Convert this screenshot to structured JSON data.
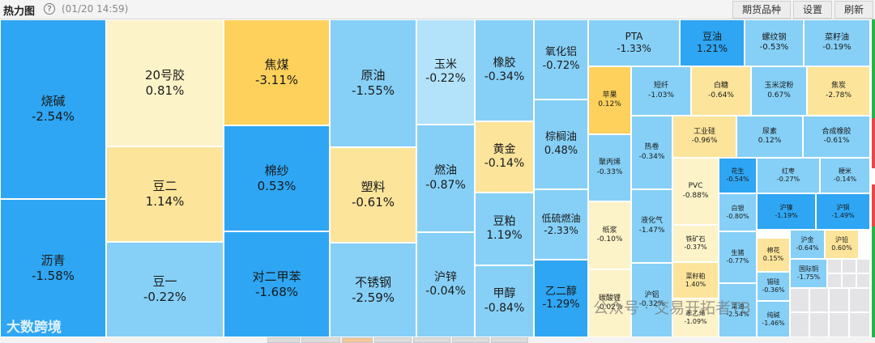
{
  "header": {
    "title": "热力图",
    "help_icon": "question-circle-icon",
    "help_glyph": "?",
    "timestamp": "(01/20 14:59)",
    "buttons": [
      {
        "name": "futures-varieties-button",
        "label": "期货品种"
      },
      {
        "name": "settings-button",
        "label": "设置"
      },
      {
        "name": "refresh-button",
        "label": "刷新"
      }
    ]
  },
  "colors": {
    "deep_blue": "#2ea6f3",
    "mid_blue": "#86d0f7",
    "light_blue": "#b3e3fb",
    "pale_yellow": "#fdf3c8",
    "light_yellow": "#fce49a",
    "orange_yellow": "#fdd15c",
    "empty_gray": "#e4e4e6"
  },
  "tiles": [
    {
      "name": "烧碱",
      "change": "-2.54%"
    },
    {
      "name": "沥青",
      "change": "-1.58%"
    },
    {
      "name": "20号胶",
      "change": "0.81%"
    },
    {
      "name": "豆二",
      "change": "1.14%"
    },
    {
      "name": "豆一",
      "change": "-0.22%"
    },
    {
      "name": "焦煤",
      "change": "-3.11%"
    },
    {
      "name": "棉纱",
      "change": "0.53%"
    },
    {
      "name": "对二甲苯",
      "change": "-1.68%"
    },
    {
      "name": "原油",
      "change": "-1.55%"
    },
    {
      "name": "塑料",
      "change": "-0.61%"
    },
    {
      "name": "不锈钢",
      "change": "-2.59%"
    },
    {
      "name": "玉米",
      "change": "-0.22%"
    },
    {
      "name": "燃油",
      "change": "-0.87%"
    },
    {
      "name": "沪锌",
      "change": "-0.04%"
    },
    {
      "name": "橡胶",
      "change": "-0.34%"
    },
    {
      "name": "黄金",
      "change": "-0.14%"
    },
    {
      "name": "豆粕",
      "change": "1.19%"
    },
    {
      "name": "甲醇",
      "change": "-0.84%"
    },
    {
      "name": "氧化铝",
      "change": "-0.72%"
    },
    {
      "name": "棕榈油",
      "change": "0.48%"
    },
    {
      "name": "低硫燃油",
      "change": "-2.33%"
    },
    {
      "name": "乙二醇",
      "change": "-1.29%"
    },
    {
      "name": "PTA",
      "change": "-1.33%"
    },
    {
      "name": "豆油",
      "change": "1.21%"
    },
    {
      "name": "螺纹钢",
      "change": "-0.53%"
    },
    {
      "name": "菜籽油",
      "change": "-0.19%"
    },
    {
      "name": "苹果",
      "change": "0.12%"
    },
    {
      "name": "短纤",
      "change": "-1.03%"
    },
    {
      "name": "白糖",
      "change": "-0.64%"
    },
    {
      "name": "玉米淀粉",
      "change": "0.67%"
    },
    {
      "name": "焦炭",
      "change": "-2.78%"
    },
    {
      "name": "聚丙烯",
      "change": "-0.33%"
    },
    {
      "name": "热卷",
      "change": "-0.34%"
    },
    {
      "name": "工业硅",
      "change": "-0.96%"
    },
    {
      "name": "尿素",
      "change": "0.12%"
    },
    {
      "name": "合成橡胶",
      "change": "-0.61%"
    },
    {
      "name": "PVC",
      "change": "-0.88%"
    },
    {
      "name": "花生",
      "change": "-0.54%"
    },
    {
      "name": "红枣",
      "change": "-0.27%"
    },
    {
      "name": "粳米",
      "change": "-0.14%"
    },
    {
      "name": "纸浆",
      "change": "-0.10%"
    },
    {
      "name": "液化气",
      "change": "-1.47%"
    },
    {
      "name": "白银",
      "change": "-0.80%"
    },
    {
      "name": "沪镍",
      "change": "-1.19%"
    },
    {
      "name": "沪铜",
      "change": "-1.49%"
    },
    {
      "name": "铁矿石",
      "change": "-0.37%"
    },
    {
      "name": "沪金",
      "change": "-0.64%"
    },
    {
      "name": "沪铅",
      "change": "0.60%"
    },
    {
      "name": "生猪",
      "change": "-0.77%"
    },
    {
      "name": "棉花",
      "change": "0.15%"
    },
    {
      "name": "国际铜",
      "change": "-1.75%"
    },
    {
      "name": "菜籽粕",
      "change": "1.40%"
    },
    {
      "name": "碳酸锂",
      "change": "-0.02%"
    },
    {
      "name": "沪铝",
      "change": "-0.32%"
    },
    {
      "name": "苯乙烯",
      "change": "-1.09%"
    },
    {
      "name": "锡硅",
      "change": "-0.36%"
    },
    {
      "name": "纯碱",
      "change": "-1.46%"
    },
    {
      "name": "菜油",
      "change": "-2.54%"
    }
  ],
  "logo_text": "大数跨境",
  "watermark_text": "公众号 · 交易开拓者TB"
}
